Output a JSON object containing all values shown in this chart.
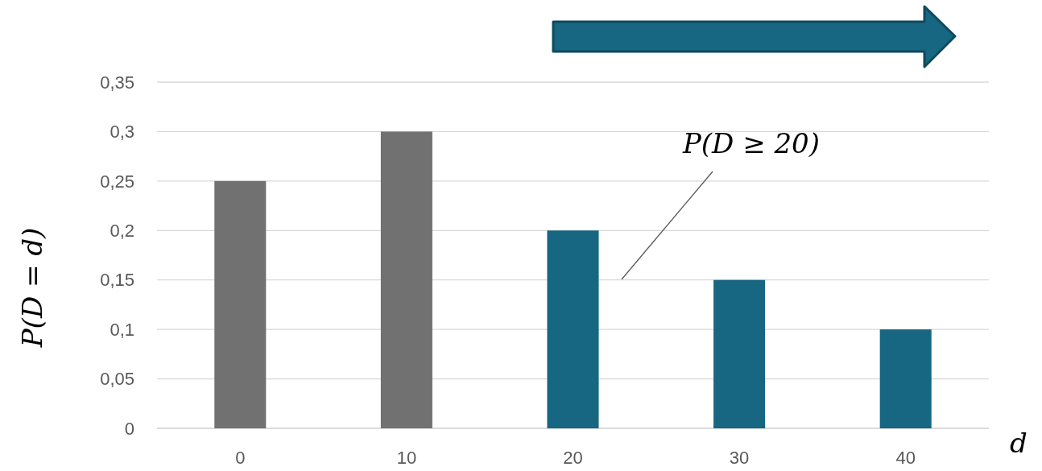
{
  "chart_data": {
    "type": "bar",
    "xlabel": "d",
    "ylabel": "P(D = d)",
    "categories": [
      "0",
      "10",
      "20",
      "30",
      "40"
    ],
    "values": [
      0.25,
      0.3,
      0.2,
      0.15,
      0.1
    ],
    "colors": [
      "#717171",
      "#717171",
      "#176682",
      "#176682",
      "#176682"
    ],
    "ylim": [
      0,
      0.35
    ],
    "yticks": [
      0,
      {
        "value": 0.05,
        "label": "0,05"
      },
      {
        "value": 0.1,
        "label": "0,1"
      },
      {
        "value": 0.15,
        "label": "0,15"
      },
      {
        "value": 0.2,
        "label": "0,2"
      },
      {
        "value": 0.25,
        "label": "0,25"
      },
      {
        "value": 0.3,
        "label": "0,3"
      },
      {
        "value": 0.35,
        "label": "0,35"
      }
    ],
    "grid": "y",
    "annotations": [
      "P(D ≥ 20)"
    ]
  }
}
